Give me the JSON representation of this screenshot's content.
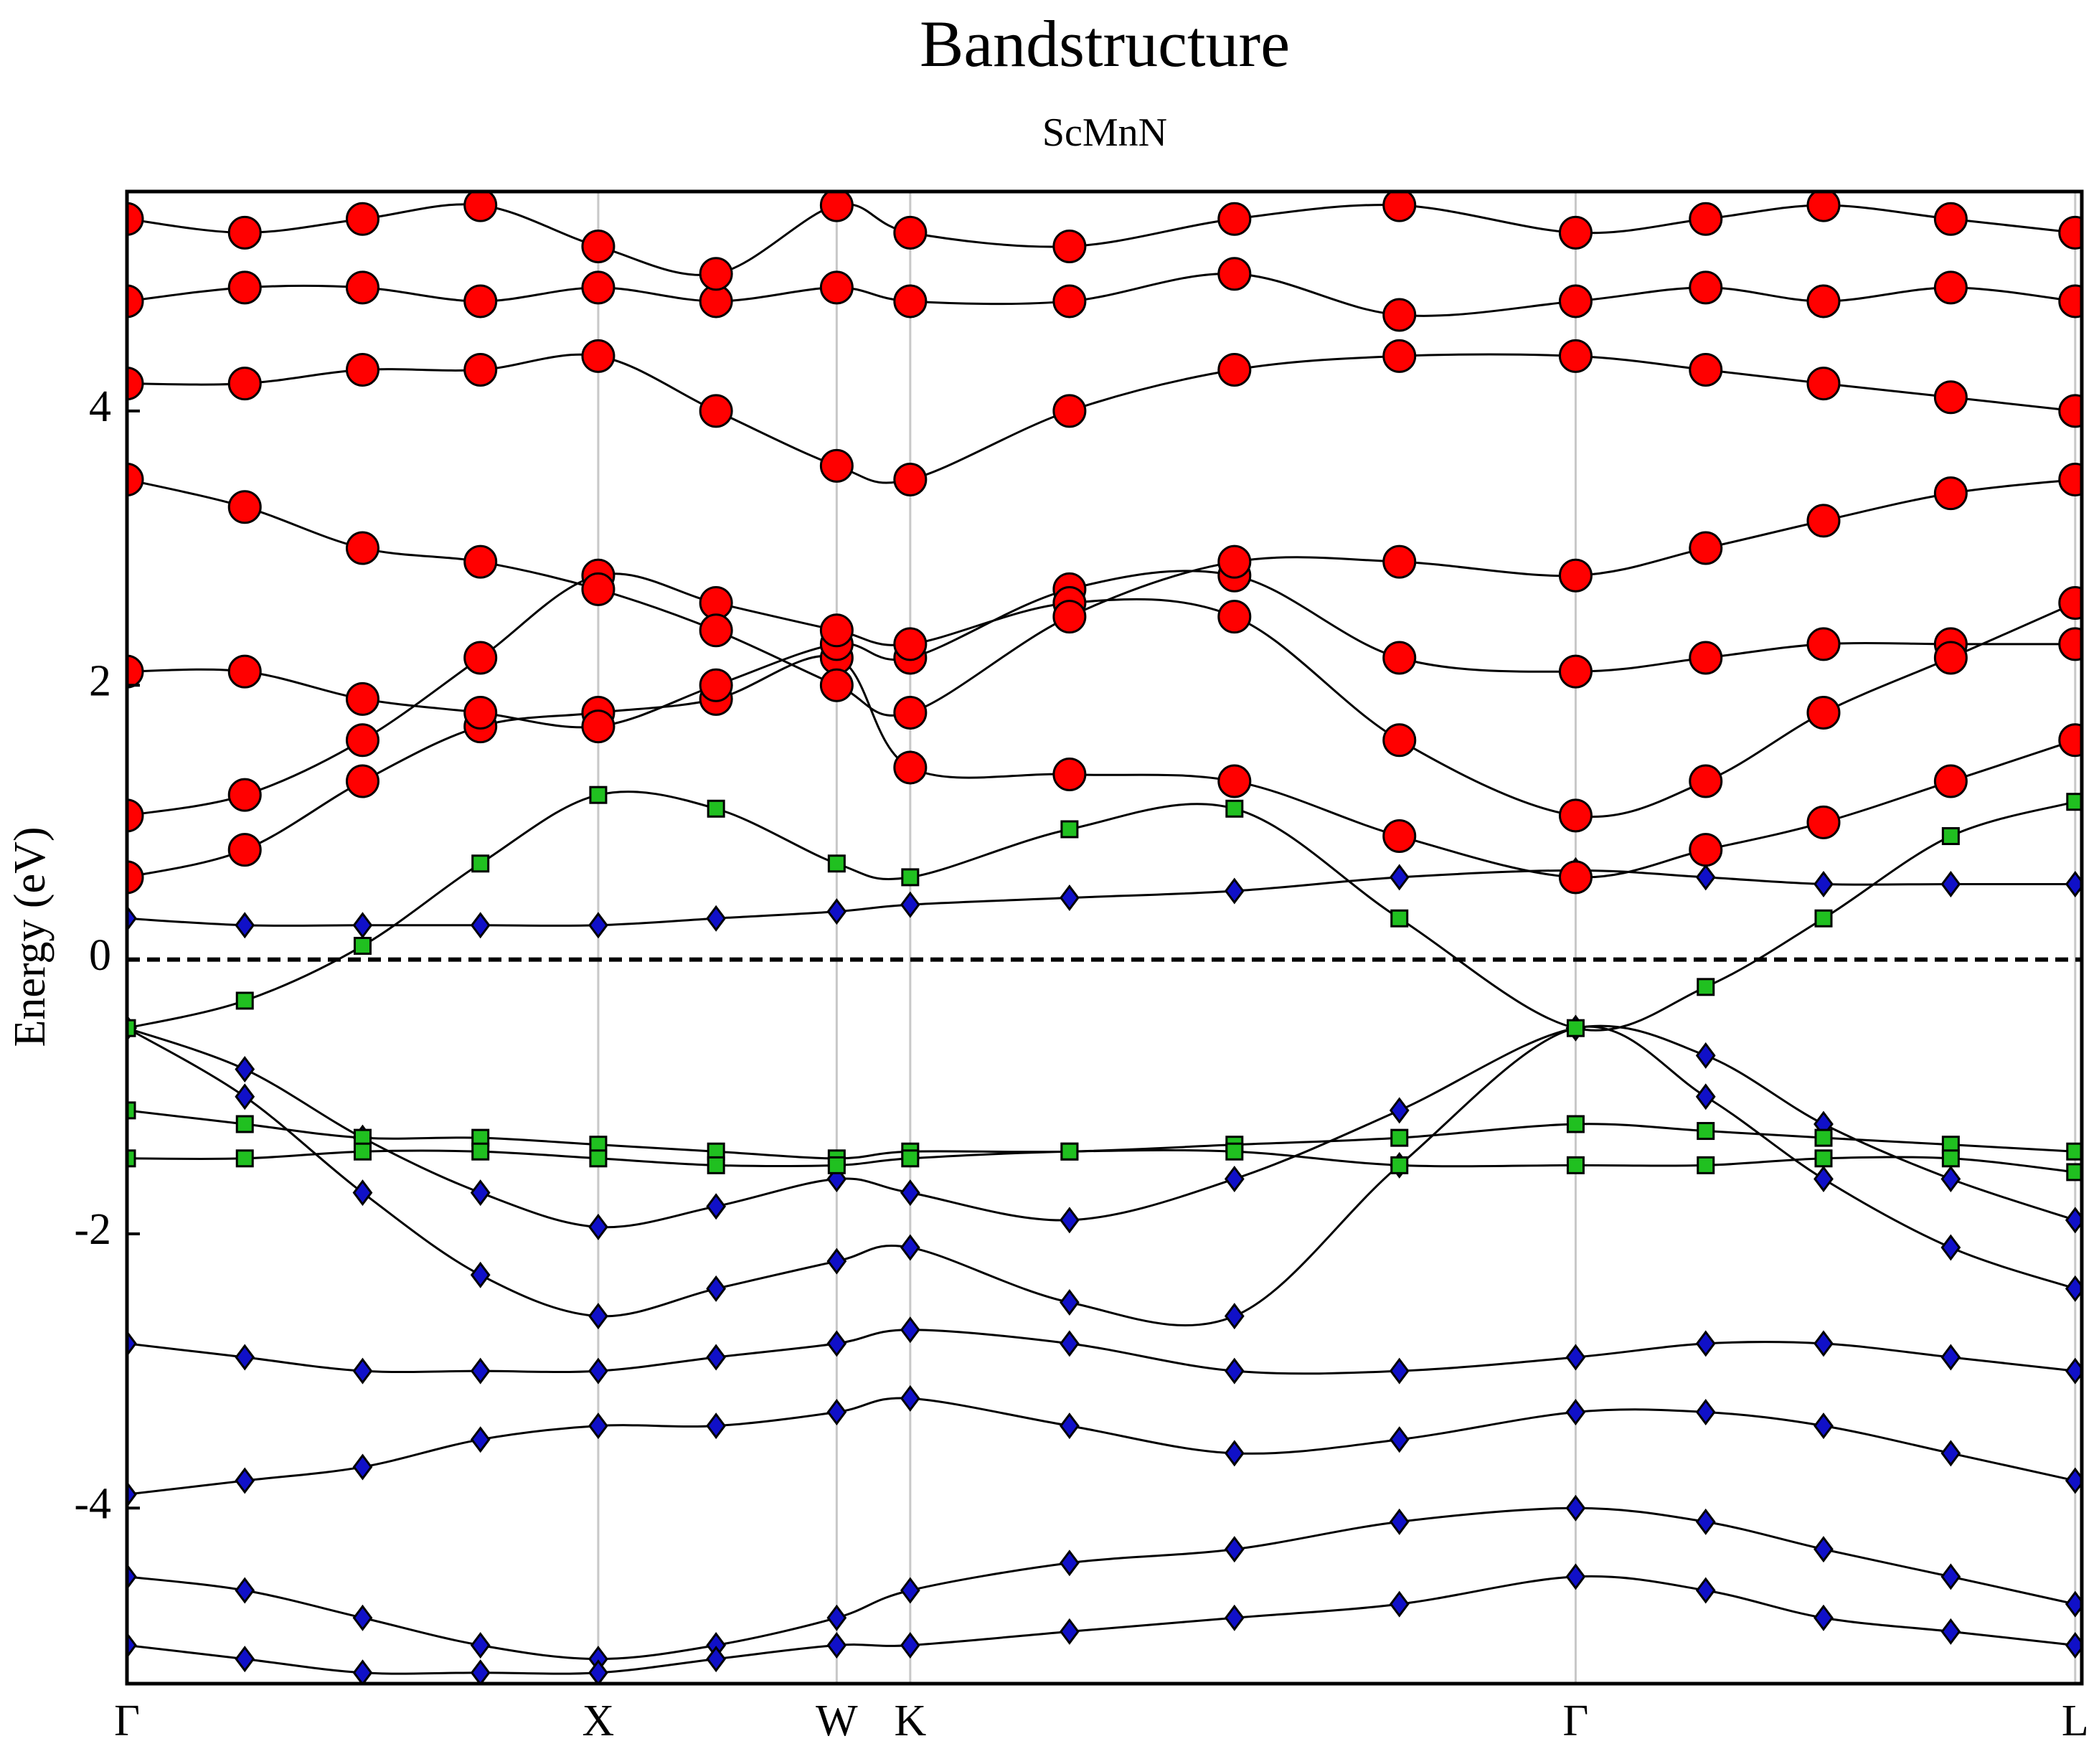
{
  "chart_data": {
    "type": "line",
    "title": "Bandstructure",
    "subtitle": "ScMnN",
    "y_label": "Energy (eV)",
    "x": [
      0,
      0.25,
      0.5,
      0.75,
      1,
      1.25,
      1.506,
      1.662,
      2.0,
      2.35,
      2.7,
      3.074,
      3.35,
      3.6,
      3.87,
      4.134
    ],
    "xlim": [
      0,
      4.148
    ],
    "xticks": [
      {
        "value": 0,
        "label": "Γ"
      },
      {
        "value": 1,
        "label": "X"
      },
      {
        "value": 1.506,
        "label": "W"
      },
      {
        "value": 1.662,
        "label": "K"
      },
      {
        "value": 3.074,
        "label": "Γ"
      },
      {
        "value": 4.134,
        "label": "L"
      }
    ],
    "ylim": [
      -5.28,
      5.6
    ],
    "yticks": [
      -4,
      -2,
      0,
      2,
      4
    ],
    "fermi_line": {
      "value": 0,
      "style": "dashed"
    },
    "grid": true,
    "series": [
      {
        "color": "#000000",
        "marker": "diamond",
        "marker_color": "#1010c8",
        "values": [
          -0.5,
          -0.8,
          -1.3,
          -1.7,
          -1.95,
          -1.8,
          -1.6,
          -1.7,
          -1.9,
          -1.6,
          -1.1,
          -0.5,
          -0.7,
          -1.2,
          -1.6,
          -1.9
        ]
      },
      {
        "color": "#000000",
        "marker": "diamond",
        "marker_color": "#1010c8",
        "values": [
          -0.5,
          -1.0,
          -1.7,
          -2.3,
          -2.6,
          -2.4,
          -2.2,
          -2.1,
          -2.5,
          -2.6,
          -1.5,
          -0.5,
          -1.0,
          -1.6,
          -2.1,
          -2.4
        ]
      },
      {
        "color": "#000000",
        "marker": "square",
        "marker_color": "#20c020",
        "values": [
          -1.1,
          -1.2,
          -1.3,
          -1.3,
          -1.35,
          -1.4,
          -1.45,
          -1.4,
          -1.4,
          -1.35,
          -1.3,
          -1.2,
          -1.25,
          -1.3,
          -1.35,
          -1.4
        ]
      },
      {
        "color": "#000000",
        "marker": "square",
        "marker_color": "#20c020",
        "values": [
          -1.45,
          -1.45,
          -1.4,
          -1.4,
          -1.45,
          -1.5,
          -1.5,
          -1.45,
          -1.4,
          -1.4,
          -1.5,
          -1.5,
          -1.5,
          -1.45,
          -1.45,
          -1.55
        ]
      },
      {
        "color": "#000000",
        "marker": "diamond",
        "marker_color": "#1010c8",
        "values": [
          -2.8,
          -2.9,
          -3.0,
          -3.0,
          -3.0,
          -2.9,
          -2.8,
          -2.7,
          -2.8,
          -3.0,
          -3.0,
          -2.9,
          -2.8,
          -2.8,
          -2.9,
          -3.0
        ]
      },
      {
        "color": "#000000",
        "marker": "diamond",
        "marker_color": "#1010c8",
        "values": [
          -3.9,
          -3.8,
          -3.7,
          -3.5,
          -3.4,
          -3.4,
          -3.3,
          -3.2,
          -3.4,
          -3.6,
          -3.5,
          -3.3,
          -3.3,
          -3.4,
          -3.6,
          -3.8
        ]
      },
      {
        "color": "#000000",
        "marker": "diamond",
        "marker_color": "#1010c8",
        "values": [
          -4.5,
          -4.6,
          -4.8,
          -5.0,
          -5.1,
          -5.0,
          -4.8,
          -4.6,
          -4.4,
          -4.3,
          -4.1,
          -4.0,
          -4.1,
          -4.3,
          -4.5,
          -4.7
        ]
      },
      {
        "color": "#000000",
        "marker": "diamond",
        "marker_color": "#1010c8",
        "values": [
          -5.0,
          -5.1,
          -5.2,
          -5.2,
          -5.2,
          -5.1,
          -5.0,
          -5.0,
          -4.9,
          -4.8,
          -4.7,
          -4.5,
          -4.6,
          -4.8,
          -4.9,
          -5.0
        ]
      },
      {
        "color": "#000000",
        "marker": "square",
        "marker_color": "#20c020",
        "values": [
          -0.5,
          -0.3,
          0.1,
          0.7,
          1.2,
          1.1,
          0.7,
          0.6,
          0.95,
          1.1,
          0.3,
          -0.5,
          -0.2,
          0.3,
          0.9,
          1.15
        ]
      },
      {
        "color": "#000000",
        "marker": "diamond",
        "marker_color": "#1010c8",
        "values": [
          0.3,
          0.25,
          0.25,
          0.25,
          0.25,
          0.3,
          0.35,
          0.4,
          0.45,
          0.5,
          0.6,
          0.65,
          0.6,
          0.55,
          0.55,
          0.55
        ]
      },
      {
        "color": "#000000",
        "marker": "circle",
        "marker_color": "#ff0000",
        "values": [
          0.6,
          0.8,
          1.3,
          1.7,
          1.8,
          1.9,
          2.2,
          1.4,
          1.35,
          1.3,
          0.9,
          0.6,
          0.8,
          1.0,
          1.3,
          1.6
        ]
      },
      {
        "color": "#000000",
        "marker": "circle",
        "marker_color": "#ff0000",
        "values": [
          2.1,
          2.1,
          1.9,
          1.8,
          1.7,
          2.0,
          2.3,
          2.2,
          2.7,
          2.8,
          2.2,
          2.1,
          2.2,
          2.3,
          2.3,
          2.3
        ]
      },
      {
        "color": "#000000",
        "marker": "circle",
        "marker_color": "#ff0000",
        "values": [
          1.05,
          1.2,
          1.6,
          2.2,
          2.8,
          2.6,
          2.4,
          2.3,
          2.6,
          2.5,
          1.6,
          1.05,
          1.3,
          1.8,
          2.2,
          2.6
        ]
      },
      {
        "color": "#000000",
        "marker": "circle",
        "marker_color": "#ff0000",
        "values": [
          3.5,
          3.3,
          3.0,
          2.9,
          2.7,
          2.4,
          2.0,
          1.8,
          2.5,
          2.9,
          2.9,
          2.8,
          3.0,
          3.2,
          3.4,
          3.5
        ]
      },
      {
        "color": "#000000",
        "marker": "circle",
        "marker_color": "#ff0000",
        "values": [
          4.2,
          4.2,
          4.3,
          4.3,
          4.4,
          4.0,
          3.6,
          3.5,
          4.0,
          4.3,
          4.4,
          4.4,
          4.3,
          4.2,
          4.1,
          4.0
        ]
      },
      {
        "color": "#000000",
        "marker": "circle",
        "marker_color": "#ff0000",
        "values": [
          4.8,
          4.9,
          4.9,
          4.8,
          4.9,
          4.8,
          4.9,
          4.8,
          4.8,
          5.0,
          4.7,
          4.8,
          4.9,
          4.8,
          4.9,
          4.8
        ]
      },
      {
        "color": "#000000",
        "marker": "circle",
        "marker_color": "#ff0000",
        "values": [
          5.4,
          5.3,
          5.4,
          5.5,
          5.2,
          5.0,
          5.5,
          5.3,
          5.2,
          5.4,
          5.5,
          5.3,
          5.4,
          5.5,
          5.4,
          5.3
        ]
      }
    ]
  }
}
